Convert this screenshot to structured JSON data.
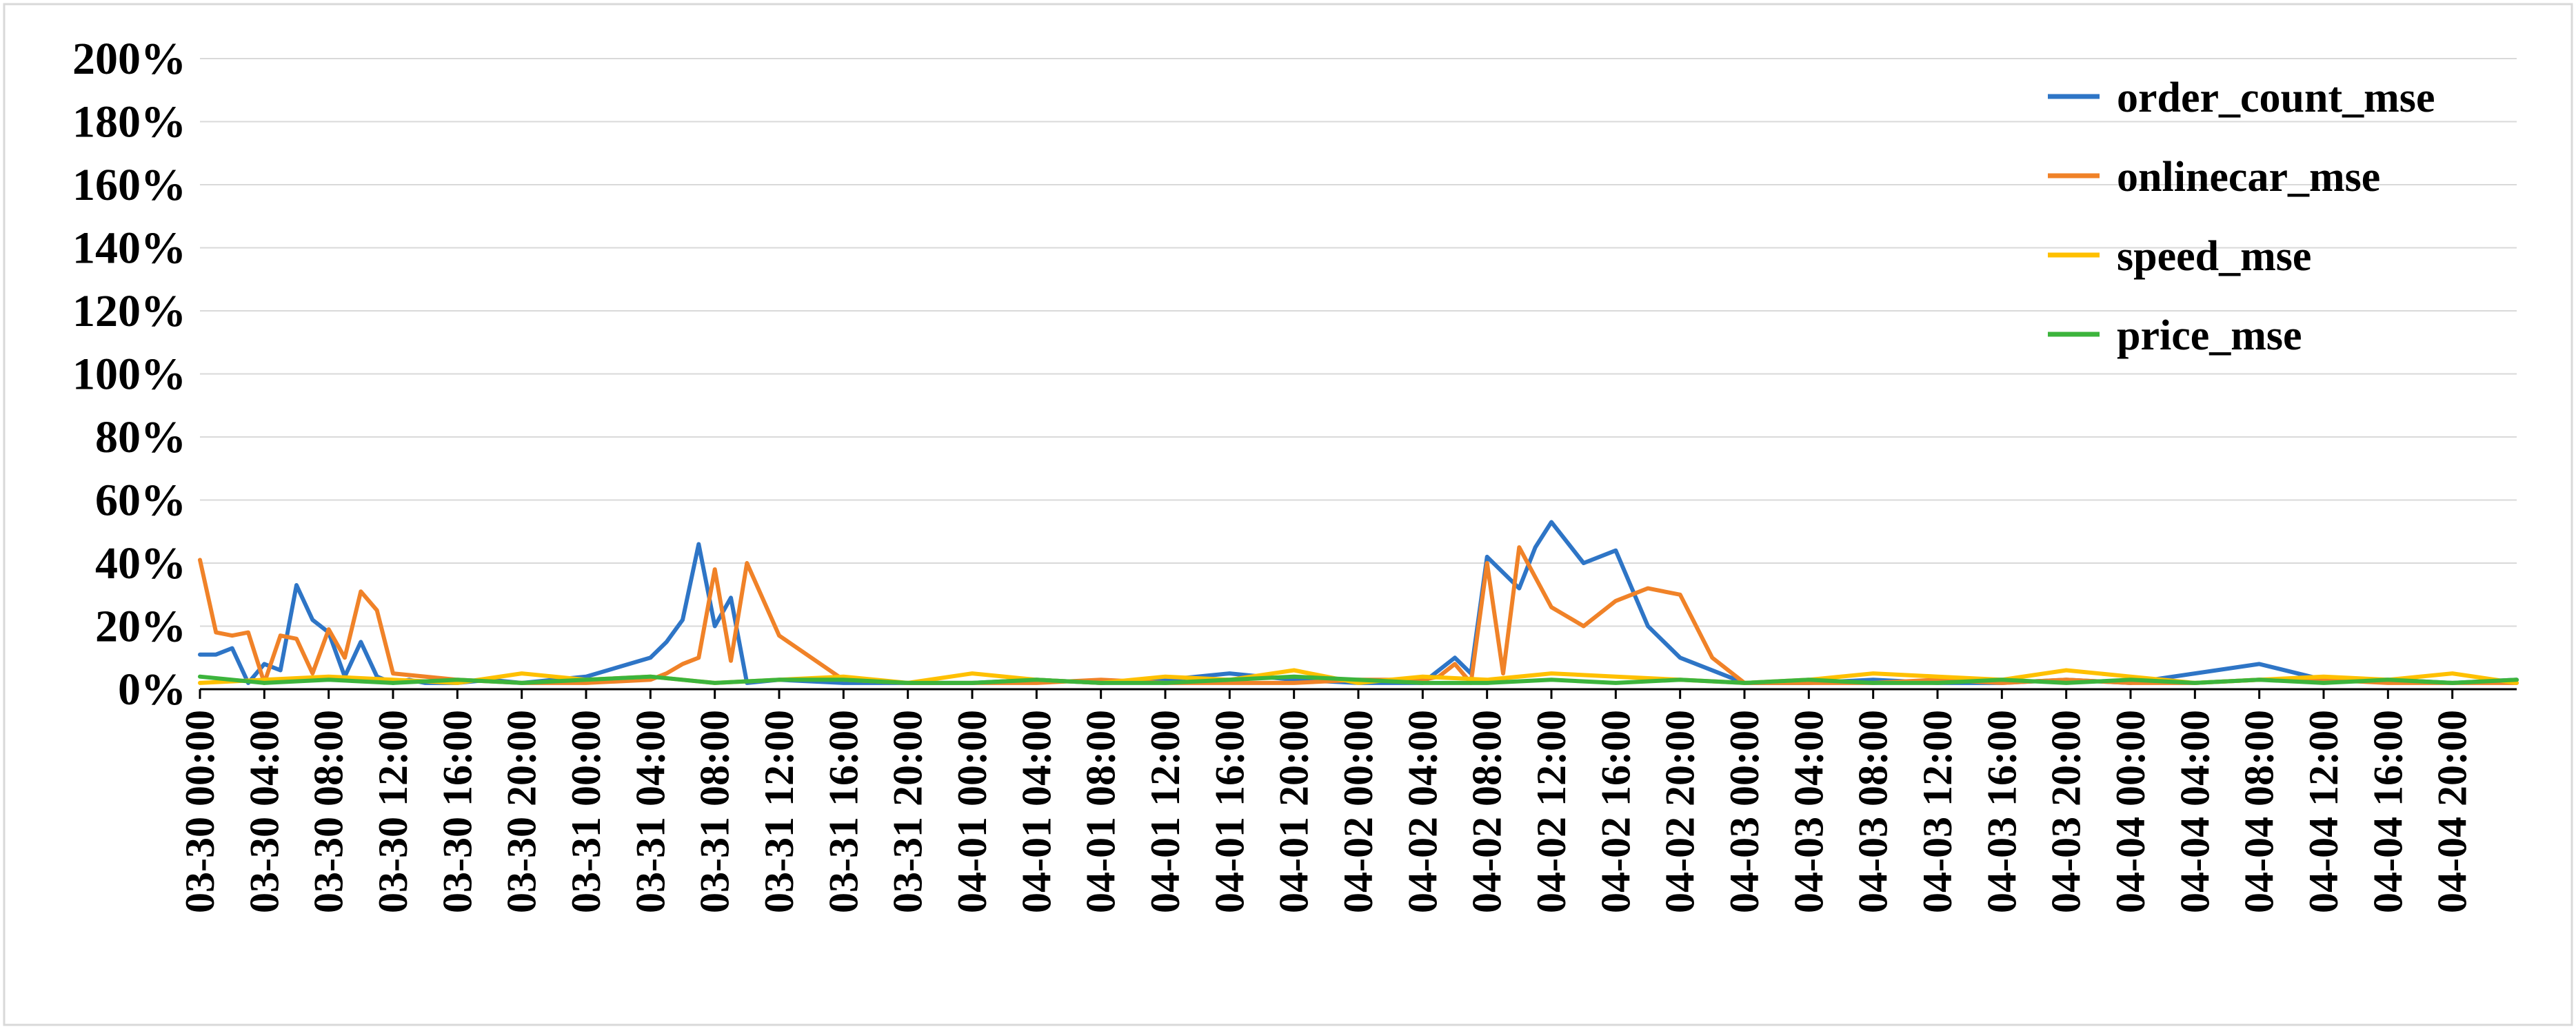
{
  "chart_data": {
    "type": "line",
    "title": "",
    "xlabel": "",
    "ylabel": "",
    "ylim": [
      0,
      200
    ],
    "y_ticks": [
      "0%",
      "20%",
      "40%",
      "60%",
      "80%",
      "100%",
      "120%",
      "140%",
      "160%",
      "180%",
      "200%"
    ],
    "x_ticks": [
      "03-30 00:00",
      "03-30 04:00",
      "03-30 08:00",
      "03-30 12:00",
      "03-30 16:00",
      "03-30 20:00",
      "03-31 00:00",
      "03-31 04:00",
      "03-31 08:00",
      "03-31 12:00",
      "03-31 16:00",
      "03-31 20:00",
      "04-01 00:00",
      "04-01 04:00",
      "04-01 08:00",
      "04-01 12:00",
      "04-01 16:00",
      "04-01 20:00",
      "04-02 00:00",
      "04-02 04:00",
      "04-02 08:00",
      "04-02 12:00",
      "04-02 16:00",
      "04-02 20:00",
      "04-03 00:00",
      "04-03 04:00",
      "04-03 08:00",
      "04-03 12:00",
      "04-03 16:00",
      "04-03 20:00",
      "04-04 00:00",
      "04-04 04:00",
      "04-04 08:00",
      "04-04 12:00",
      "04-04 16:00",
      "04-04 20:00"
    ],
    "x": [
      0,
      4,
      8,
      12,
      16,
      20,
      24,
      28,
      32,
      36,
      40,
      44,
      48,
      52,
      56,
      60,
      64,
      68,
      72,
      76,
      80,
      84,
      88,
      92,
      96,
      100,
      104,
      108,
      112,
      116,
      120,
      124,
      128,
      132,
      136,
      140,
      144
    ],
    "x_range": [
      0,
      144
    ],
    "legend_position": "top-right",
    "grid": true,
    "series": [
      {
        "name": "order_count_mse",
        "color": "#2e75c6",
        "x": [
          0,
          1,
          2,
          3,
          4,
          5,
          6,
          7,
          8,
          9,
          10,
          11,
          12,
          13,
          14,
          16,
          18,
          20,
          24,
          28,
          29,
          30,
          31,
          32,
          33,
          34,
          36,
          40,
          44,
          48,
          52,
          56,
          60,
          64,
          68,
          72,
          76,
          78,
          79,
          80,
          82,
          83,
          84,
          86,
          88,
          90,
          92,
          96,
          100,
          104,
          108,
          112,
          116,
          120,
          124,
          128,
          132,
          136,
          140,
          144
        ],
        "y": [
          11,
          11,
          13,
          2,
          8,
          6,
          33,
          22,
          18,
          4,
          15,
          4,
          2,
          3,
          2,
          2,
          3,
          2,
          4,
          10,
          15,
          22,
          46,
          20,
          29,
          2,
          3,
          2,
          2,
          2,
          3,
          2,
          3,
          5,
          3,
          2,
          2,
          10,
          5,
          42,
          32,
          45,
          53,
          40,
          44,
          20,
          10,
          2,
          2,
          3,
          2,
          2,
          3,
          2,
          5,
          8,
          3,
          3,
          2,
          3
        ]
      },
      {
        "name": "onlinecar_mse",
        "color": "#f08228",
        "x": [
          0,
          1,
          2,
          3,
          4,
          5,
          6,
          7,
          8,
          9,
          10,
          11,
          12,
          16,
          20,
          24,
          28,
          29,
          30,
          31,
          32,
          33,
          34,
          36,
          40,
          44,
          48,
          52,
          56,
          60,
          64,
          68,
          72,
          76,
          77,
          78,
          79,
          80,
          81,
          82,
          84,
          86,
          88,
          90,
          92,
          94,
          96,
          100,
          104,
          108,
          112,
          116,
          120,
          124,
          128,
          132,
          136,
          140,
          144
        ],
        "y": [
          41,
          18,
          17,
          18,
          2,
          17,
          16,
          5,
          19,
          10,
          31,
          25,
          5,
          3,
          2,
          2,
          3,
          5,
          8,
          10,
          38,
          9,
          40,
          17,
          3,
          2,
          2,
          2,
          3,
          2,
          2,
          2,
          3,
          3,
          4,
          8,
          2,
          40,
          5,
          45,
          26,
          20,
          28,
          32,
          30,
          10,
          2,
          2,
          2,
          3,
          2,
          3,
          2,
          2,
          3,
          3,
          2,
          2,
          2
        ]
      },
      {
        "name": "speed_mse",
        "color": "#ffc000",
        "x": [
          0,
          4,
          8,
          12,
          16,
          20,
          24,
          28,
          32,
          36,
          40,
          44,
          48,
          52,
          56,
          60,
          64,
          68,
          72,
          76,
          80,
          84,
          88,
          92,
          96,
          100,
          104,
          108,
          112,
          116,
          120,
          124,
          128,
          132,
          136,
          140,
          144
        ],
        "y": [
          2,
          3,
          4,
          3,
          2,
          5,
          3,
          4,
          2,
          3,
          4,
          2,
          5,
          3,
          2,
          4,
          3,
          6,
          2,
          4,
          3,
          5,
          4,
          3,
          2,
          3,
          5,
          4,
          3,
          6,
          4,
          2,
          3,
          4,
          3,
          5,
          2
        ]
      },
      {
        "name": "price_mse",
        "color": "#3cb43c",
        "x": [
          0,
          4,
          8,
          12,
          16,
          20,
          24,
          28,
          32,
          36,
          40,
          44,
          48,
          52,
          56,
          60,
          64,
          68,
          72,
          76,
          80,
          84,
          88,
          92,
          96,
          100,
          104,
          108,
          112,
          116,
          120,
          124,
          128,
          132,
          136,
          140,
          144
        ],
        "y": [
          4,
          2,
          3,
          2,
          3,
          2,
          3,
          4,
          2,
          3,
          3,
          2,
          2,
          3,
          2,
          2,
          3,
          4,
          3,
          2,
          2,
          3,
          2,
          3,
          2,
          3,
          2,
          2,
          3,
          2,
          3,
          2,
          3,
          2,
          3,
          2,
          3
        ]
      }
    ]
  }
}
